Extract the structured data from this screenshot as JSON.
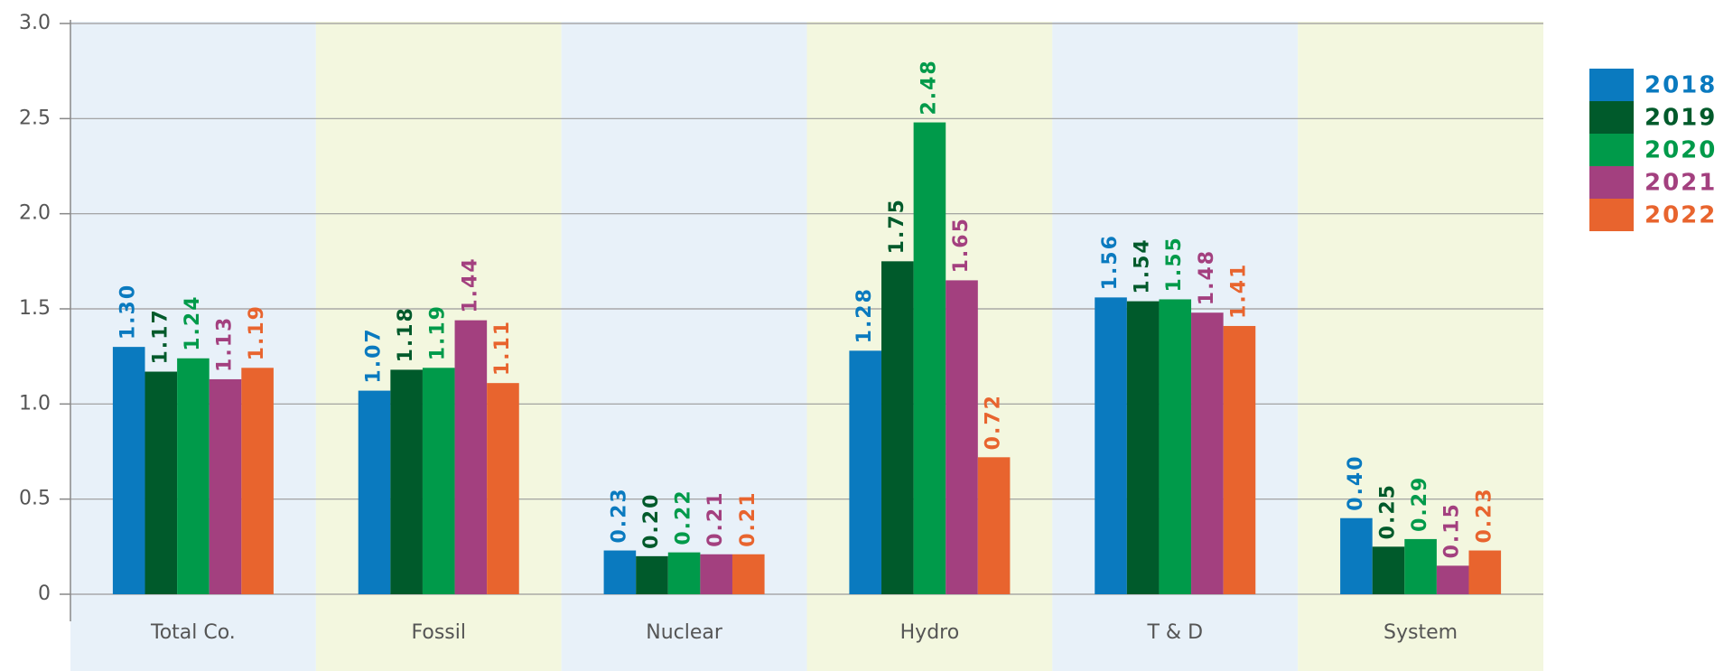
{
  "chart_data": {
    "type": "bar",
    "categories": [
      "Total Co.",
      "Fossil",
      "Nuclear",
      "Hydro",
      "T & D",
      "System"
    ],
    "series": [
      {
        "name": "2018",
        "color": "#0a7abf",
        "values": [
          1.3,
          1.07,
          0.23,
          1.28,
          1.56,
          0.4
        ],
        "value_labels": [
          "1.30",
          "1.07",
          "0.23",
          "1.28",
          "1.56",
          "0.40"
        ]
      },
      {
        "name": "2019",
        "color": "#005a2b",
        "values": [
          1.17,
          1.18,
          0.2,
          1.75,
          1.54,
          0.25
        ],
        "value_labels": [
          "1.17",
          "1.18",
          "0.20",
          "1.75",
          "1.54",
          "0.25"
        ]
      },
      {
        "name": "2020",
        "color": "#009a4a",
        "values": [
          1.24,
          1.19,
          0.22,
          2.48,
          1.55,
          0.29
        ],
        "value_labels": [
          "1.24",
          "1.19",
          "0.22",
          "2.48",
          "1.55",
          "0.29"
        ]
      },
      {
        "name": "2021",
        "color": "#a3407f",
        "values": [
          1.13,
          1.44,
          0.21,
          1.65,
          1.48,
          0.15
        ],
        "value_labels": [
          "1.13",
          "1.44",
          "0.21",
          "1.65",
          "1.48",
          "0.15"
        ]
      },
      {
        "name": "2022",
        "color": "#e8642e",
        "values": [
          1.19,
          1.11,
          0.21,
          0.72,
          1.41,
          0.23
        ],
        "value_labels": [
          "1.19",
          "1.11",
          "0.21",
          "0.72",
          "1.41",
          "0.23"
        ]
      }
    ],
    "ylim": [
      0,
      3
    ],
    "yticks": [
      0,
      0.5,
      {
        "value": 1,
        "label": "1.0"
      },
      1.5,
      {
        "value": 2,
        "label": "2.0"
      },
      2.5,
      {
        "value": 3,
        "label": "3.0"
      }
    ],
    "grid": true,
    "legend": "right",
    "band_colors": [
      "#e8f1f9",
      "#f3f7df"
    ]
  }
}
